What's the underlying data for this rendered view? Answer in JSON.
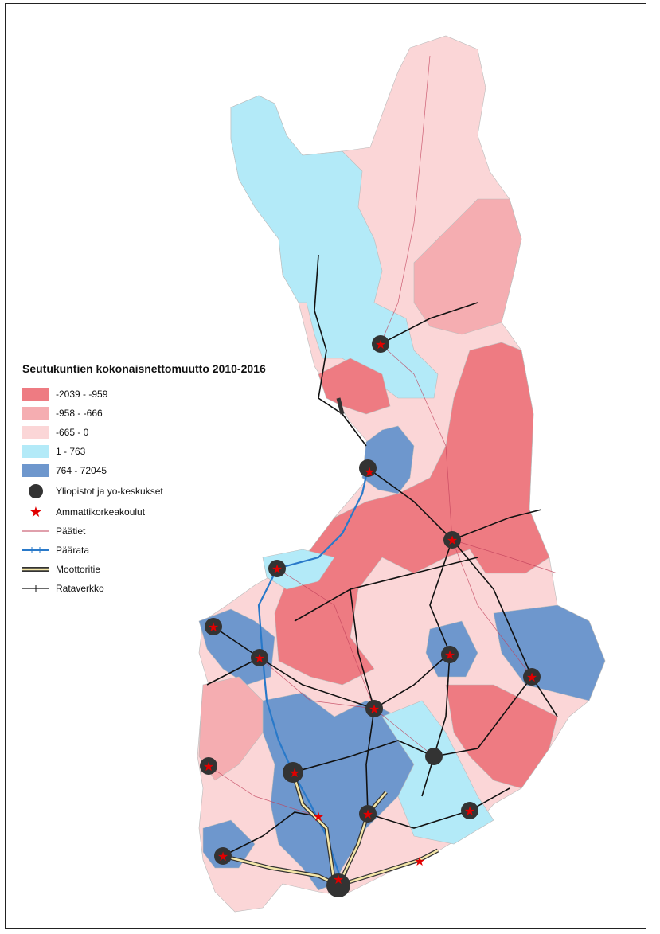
{
  "legend": {
    "title": "Seutukuntien kokonaisnettomuutto 2010-2016",
    "classes": [
      {
        "label": "-2039 - -959",
        "color": "#ee7b82"
      },
      {
        "label": "-958 - -666",
        "color": "#f5adb1"
      },
      {
        "label": "-665 - 0",
        "color": "#fbd6d7"
      },
      {
        "label": "1 - 763",
        "color": "#b3eaf8"
      },
      {
        "label": "764 - 72045",
        "color": "#6e97cd"
      }
    ],
    "symbols": [
      {
        "label": "Yliopistot ja yo-keskukset",
        "icon": "university-dot-icon"
      },
      {
        "label": "Ammattikorkeakoulut",
        "icon": "star-icon"
      },
      {
        "label": "Päätiet",
        "icon": "main-road-line-icon",
        "color": "#c0405a"
      },
      {
        "label": "Päärata",
        "icon": "main-railway-line-icon",
        "color": "#2979c9"
      },
      {
        "label": "Moottoritie",
        "icon": "motorway-line-icon",
        "color": "#f4e6a8"
      },
      {
        "label": "Rataverkko",
        "icon": "railway-network-line-icon",
        "color": "#111111"
      }
    ]
  }
}
